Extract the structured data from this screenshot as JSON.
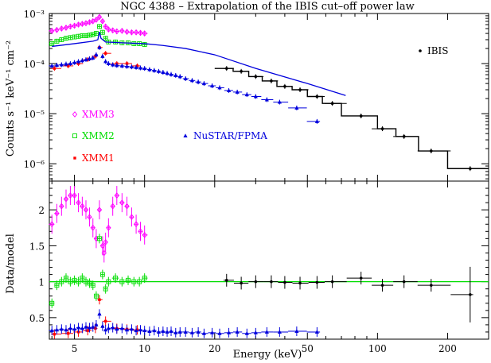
{
  "chart_data": [
    {
      "type": "scatter",
      "panel": "spectrum",
      "title": "NGC 4388 – Extrapolation of the IBIS cut–off power law",
      "xlabel": "Energy (keV)",
      "ylabel": "Counts s⁻¹ keV⁻¹ cm⁻²",
      "xscale": "log",
      "yscale": "log",
      "xlim": [
        3.9,
        300
      ],
      "ylim": [
        4.5e-07,
        0.001
      ],
      "ytick_labels": [
        "10⁻⁶",
        "10⁻⁵",
        "10⁻⁴",
        "10⁻³"
      ],
      "colors": {
        "XMM3": "#ff00ff",
        "XMM2": "#00dd00",
        "XMM1": "#ff0000",
        "NuSTAR/FPMA": "#0000dd",
        "IBIS": "#000000"
      },
      "legend": [
        "XMM3",
        "XMM2",
        "XMM1",
        "NuSTAR/FPMA",
        "IBIS"
      ],
      "series": [
        {
          "name": "XMM3",
          "x": [
            4.0,
            4.2,
            4.4,
            4.6,
            4.8,
            5.0,
            5.2,
            5.4,
            5.6,
            5.8,
            6.0,
            6.2,
            6.4,
            6.6,
            6.8,
            7.0,
            7.3,
            7.6,
            8.0,
            8.4,
            8.8,
            9.2,
            9.6,
            10.0
          ],
          "y": [
            0.00045,
            0.00047,
            0.0005,
            0.00052,
            0.00055,
            0.00057,
            0.0006,
            0.00062,
            0.00064,
            0.00067,
            0.0007,
            0.00075,
            0.00085,
            0.0007,
            0.00055,
            0.00048,
            0.00046,
            0.00044,
            0.00045,
            0.00043,
            0.00042,
            0.00042,
            0.00041,
            0.0004
          ]
        },
        {
          "name": "XMM2",
          "x": [
            4.0,
            4.2,
            4.4,
            4.6,
            4.8,
            5.0,
            5.2,
            5.4,
            5.6,
            5.8,
            6.0,
            6.2,
            6.4,
            6.6,
            6.8,
            7.0,
            7.5,
            8.0,
            8.5,
            9.0,
            9.5,
            10.0
          ],
          "y": [
            0.00025,
            0.00028,
            0.0003,
            0.00032,
            0.00033,
            0.00034,
            0.00035,
            0.00036,
            0.00036,
            0.00037,
            0.00038,
            0.0004,
            0.00055,
            0.00042,
            0.00032,
            0.00027,
            0.00027,
            0.00026,
            0.00026,
            0.00025,
            0.00025,
            0.00024
          ]
        },
        {
          "name": "XMM1",
          "x": [
            4.1,
            4.7,
            5.2,
            5.7,
            6.15,
            6.4,
            6.8,
            7.6,
            8.4,
            9.3
          ],
          "y": [
            8e-05,
            9e-05,
            0.0001,
            0.00012,
            0.00014,
            0.00021,
            0.00016,
            0.0001,
            0.0001,
            9e-05
          ]
        },
        {
          "name": "NuSTAR/FPMA",
          "x": [
            4.0,
            4.2,
            4.4,
            4.6,
            4.8,
            5.0,
            5.2,
            5.4,
            5.6,
            5.8,
            6.0,
            6.2,
            6.4,
            6.6,
            6.8,
            7.0,
            7.3,
            7.6,
            8.0,
            8.4,
            8.8,
            9.2,
            9.6,
            10.0,
            10.5,
            11.0,
            11.5,
            12.0,
            12.5,
            13.0,
            13.6,
            14.2,
            15.0,
            16.0,
            17.0,
            18.0,
            19.5,
            21.0,
            23.0,
            25.0,
            27.5,
            30.0,
            33.5,
            38.0,
            45.0,
            55.0
          ],
          "y": [
            9e-05,
            9.3e-05,
            9.5e-05,
            9.8e-05,
            0.0001,
            0.000105,
            0.00011,
            0.000115,
            0.00012,
            0.000125,
            0.00013,
            0.00015,
            0.00021,
            0.00014,
            0.00011,
            0.0001,
            9.5e-05,
            9.2e-05,
            9e-05,
            8.8e-05,
            8.6e-05,
            8.4e-05,
            8.2e-05,
            8e-05,
            7.6e-05,
            7.3e-05,
            7e-05,
            6.7e-05,
            6.4e-05,
            6.1e-05,
            5.8e-05,
            5.5e-05,
            5e-05,
            4.6e-05,
            4.3e-05,
            4e-05,
            3.6e-05,
            3.3e-05,
            2.9e-05,
            2.7e-05,
            2.4e-05,
            2.2e-05,
            1.9e-05,
            1.7e-05,
            1.3e-05,
            7e-06
          ]
        },
        {
          "name": "IBIS",
          "x": [
            22.5,
            26.0,
            30.0,
            35.0,
            40.0,
            46.5,
            55.0,
            64.0,
            85.0,
            105.0,
            130.0,
            170.0,
            250.0
          ],
          "y": [
            8e-05,
            7e-05,
            5.5e-05,
            4.5e-05,
            3.5e-05,
            3e-05,
            2.2e-05,
            1.6e-05,
            9e-06,
            5e-06,
            3.5e-06,
            1.8e-06,
            8e-07
          ]
        },
        {
          "name": "",
          "style": "model-step",
          "x": [
            20.0,
            24.0,
            28.0,
            32.0,
            37.0,
            43.0,
            50.0,
            58.0,
            70.0,
            100.0,
            120.0,
            150.0,
            200.0,
            300.0
          ],
          "y": [
            8e-05,
            7e-05,
            5.5e-05,
            4.5e-05,
            3.5e-05,
            3e-05,
            2.2e-05,
            1.6e-05,
            9e-06,
            5e-06,
            3.5e-06,
            1.8e-06,
            8e-07,
            8e-07
          ]
        },
        {
          "name": "",
          "style": "model-curve",
          "x": [
            4.0,
            5.0,
            6.0,
            6.3,
            6.4,
            6.5,
            6.8,
            8.0,
            10.0,
            12.0,
            15.0,
            20.0,
            30.0,
            50.0,
            73.0
          ],
          "y": [
            0.00022,
            0.00025,
            0.00028,
            0.0003,
            0.00043,
            0.00032,
            0.00027,
            0.00026,
            0.00025,
            0.00023,
            0.0002,
            0.00015,
            8e-05,
            4e-05,
            2.3e-05
          ]
        }
      ]
    },
    {
      "type": "scatter",
      "panel": "ratio",
      "xlabel": "Energy (keV)",
      "ylabel": "Data/model",
      "xscale": "log",
      "xlim": [
        3.9,
        300
      ],
      "ylim": [
        0.2,
        2.4
      ],
      "xtick_labels": [
        "5",
        "10",
        "20",
        "50",
        "100",
        "200"
      ],
      "ytick_labels": [
        "0.5",
        "1",
        "1.5",
        "2"
      ],
      "reference_line": 1.0,
      "series": [
        {
          "name": "XMM3",
          "x": [
            4.0,
            4.2,
            4.4,
            4.6,
            4.8,
            5.0,
            5.2,
            5.4,
            5.6,
            5.8,
            6.0,
            6.2,
            6.4,
            6.6,
            6.7,
            6.8,
            7.0,
            7.3,
            7.6,
            8.0,
            8.4,
            8.8,
            9.2,
            9.6,
            10.0
          ],
          "y": [
            1.8,
            1.95,
            2.05,
            2.15,
            2.2,
            2.2,
            2.1,
            2.05,
            2.0,
            1.9,
            1.75,
            1.6,
            2.0,
            1.5,
            1.4,
            1.55,
            1.75,
            2.05,
            2.2,
            2.1,
            2.05,
            1.9,
            1.8,
            1.7,
            1.65
          ]
        },
        {
          "name": "XMM2",
          "x": [
            4.0,
            4.2,
            4.4,
            4.6,
            4.8,
            5.0,
            5.2,
            5.4,
            5.6,
            5.8,
            6.0,
            6.2,
            6.4,
            6.6,
            6.8,
            7.0,
            7.5,
            8.0,
            8.5,
            9.0,
            9.5,
            10.0
          ],
          "y": [
            0.7,
            0.95,
            1.0,
            1.05,
            1.0,
            1.02,
            1.0,
            1.05,
            1.0,
            0.98,
            0.95,
            0.8,
            1.6,
            1.1,
            0.9,
            1.0,
            1.05,
            1.0,
            1.02,
            1.0,
            1.0,
            1.05
          ]
        },
        {
          "name": "XMM1",
          "x": [
            4.1,
            4.7,
            5.2,
            5.7,
            6.15,
            6.4,
            6.8,
            7.6,
            8.4,
            9.3
          ],
          "y": [
            0.27,
            0.28,
            0.3,
            0.32,
            0.35,
            0.75,
            0.45,
            0.35,
            0.34,
            0.33
          ]
        },
        {
          "name": "NuSTAR/FPMA",
          "x": [
            4.0,
            4.2,
            4.4,
            4.6,
            4.8,
            5.0,
            5.2,
            5.4,
            5.6,
            5.8,
            6.0,
            6.2,
            6.4,
            6.6,
            6.8,
            7.0,
            7.3,
            7.6,
            8.0,
            8.4,
            8.8,
            9.2,
            9.6,
            10.0,
            10.5,
            11.0,
            11.5,
            12.0,
            12.5,
            13.0,
            13.6,
            14.2,
            15.0,
            16.0,
            17.0,
            18.0,
            19.5,
            21.0,
            23.0,
            25.0,
            27.5,
            30.0,
            33.5,
            38.0,
            45.0,
            55.0
          ],
          "y": [
            0.32,
            0.33,
            0.34,
            0.33,
            0.35,
            0.34,
            0.36,
            0.35,
            0.37,
            0.36,
            0.37,
            0.4,
            0.55,
            0.38,
            0.33,
            0.35,
            0.36,
            0.34,
            0.35,
            0.33,
            0.34,
            0.32,
            0.33,
            0.32,
            0.31,
            0.32,
            0.3,
            0.31,
            0.3,
            0.31,
            0.29,
            0.3,
            0.3,
            0.29,
            0.3,
            0.28,
            0.29,
            0.28,
            0.29,
            0.3,
            0.28,
            0.29,
            0.3,
            0.3,
            0.31,
            0.3
          ]
        },
        {
          "name": "IBIS",
          "x": [
            22.5,
            26.0,
            30.0,
            35.0,
            40.0,
            46.5,
            55.0,
            64.0,
            85.0,
            105.0,
            130.0,
            170.0,
            250.0
          ],
          "y": [
            1.02,
            0.98,
            1.0,
            1.0,
            0.99,
            0.98,
            0.99,
            1.0,
            1.05,
            0.95,
            1.0,
            0.95,
            0.82
          ]
        }
      ]
    }
  ]
}
